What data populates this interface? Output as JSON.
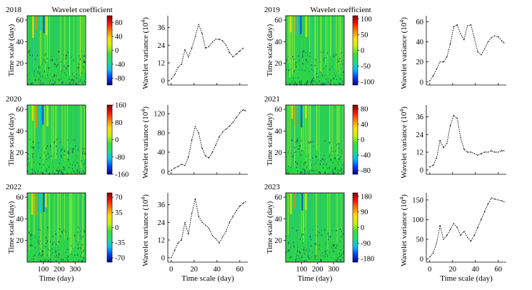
{
  "figure": {
    "colorbar_title": "Wavelet coefficient",
    "colormap": [
      "#00008f",
      "#0040ff",
      "#00c0ff",
      "#20e070",
      "#3cdd3c",
      "#c8f000",
      "#ffe000",
      "#ff8000",
      "#ff1000",
      "#800000"
    ],
    "scalogram_base_color": "#2ed44a",
    "scalogram_axes": {
      "xlabel": "Time (day)",
      "ylabel": "Time scale (day)",
      "xticks": [
        100,
        200,
        300
      ],
      "yticks": [
        20,
        40,
        60
      ],
      "xlim": [
        0,
        366
      ],
      "ylim": [
        0,
        64
      ]
    },
    "variance_axes": {
      "xlabel": "Time scale (day)",
      "ylabel": "Wavelet variance (10",
      "ylabel_exp": "4",
      "ylabel_close": ")",
      "xticks": [
        0,
        20,
        40,
        60
      ],
      "xlim": [
        -3,
        67
      ]
    }
  },
  "chart_data": [
    {
      "type": "heatmap",
      "title": "2018",
      "xlabel": "Time (day)",
      "ylabel": "Time scale (day)",
      "colorbar_ticks": [
        "80",
        "40",
        "0",
        "-40",
        "-80"
      ],
      "colorbar_range": [
        -100,
        100
      ]
    },
    {
      "type": "line",
      "xlabel": "Time scale (day)",
      "ylabel": "Wavelet variance (10^4)",
      "yticks": [
        "0",
        "12",
        "24",
        "36"
      ],
      "ylim": [
        -3,
        44
      ],
      "x": [
        0,
        3,
        6,
        9,
        12,
        15,
        18,
        21,
        24,
        27,
        30,
        33,
        36,
        39,
        42,
        45,
        48,
        51,
        54,
        57,
        60,
        63
      ],
      "y": [
        1,
        4,
        9,
        11,
        21,
        16,
        22,
        30,
        38,
        32,
        22,
        23,
        26,
        28,
        28,
        27,
        24,
        19,
        16,
        18,
        20,
        22
      ]
    },
    {
      "type": "heatmap",
      "title": "2019",
      "xlabel": "Time (day)",
      "ylabel": "Time scale (day)",
      "colorbar_ticks": [
        "100",
        "50",
        "0",
        "-50",
        "-100"
      ],
      "colorbar_range": [
        -110,
        110
      ]
    },
    {
      "type": "line",
      "xlabel": "Time scale (day)",
      "ylabel": "Wavelet variance (10^4)",
      "yticks": [
        "0",
        "20",
        "40",
        "60"
      ],
      "ylim": [
        -3,
        66
      ],
      "x": [
        0,
        3,
        6,
        9,
        12,
        15,
        18,
        21,
        24,
        27,
        30,
        33,
        36,
        39,
        42,
        45,
        48,
        51,
        54,
        57,
        60,
        63,
        65
      ],
      "y": [
        1,
        6,
        13,
        20,
        20,
        25,
        38,
        55,
        57,
        48,
        42,
        56,
        57,
        44,
        30,
        27,
        33,
        40,
        44,
        46,
        45,
        41,
        39
      ]
    },
    {
      "type": "heatmap",
      "title": "2020",
      "xlabel": "Time (day)",
      "ylabel": "Time scale (day)",
      "colorbar_ticks": [
        "160",
        "80",
        "0",
        "-80",
        "-160"
      ],
      "colorbar_range": [
        -160,
        160
      ]
    },
    {
      "type": "line",
      "xlabel": "Time scale (day)",
      "ylabel": "Wavelet variance (10^4)",
      "yticks": [
        "0",
        "40",
        "80",
        "120"
      ],
      "ylim": [
        -6,
        138
      ],
      "x": [
        0,
        3,
        6,
        9,
        12,
        15,
        18,
        21,
        24,
        27,
        30,
        33,
        36,
        39,
        42,
        45,
        48,
        51,
        54,
        57,
        60,
        63,
        65
      ],
      "y": [
        2,
        7,
        10,
        15,
        12,
        30,
        65,
        93,
        80,
        48,
        32,
        28,
        40,
        55,
        72,
        82,
        88,
        94,
        102,
        112,
        122,
        128,
        126
      ]
    },
    {
      "type": "heatmap",
      "title": "2021",
      "xlabel": "Time (day)",
      "ylabel": "Time scale (day)",
      "colorbar_ticks": [
        "80",
        "40",
        "0",
        "-40",
        "-80"
      ],
      "colorbar_range": [
        -90,
        90
      ]
    },
    {
      "type": "line",
      "xlabel": "Time scale (day)",
      "ylabel": "Wavelet variance (10^4)",
      "yticks": [
        "0",
        "12",
        "24",
        "36"
      ],
      "ylim": [
        -3,
        44
      ],
      "x": [
        0,
        3,
        6,
        9,
        12,
        15,
        18,
        21,
        24,
        27,
        30,
        33,
        36,
        39,
        42,
        45,
        48,
        51,
        54,
        57,
        60,
        63,
        65
      ],
      "y": [
        2,
        3,
        8,
        20,
        15,
        18,
        30,
        37,
        35,
        22,
        14,
        12,
        12,
        11,
        10,
        11,
        12,
        12,
        13,
        12,
        12,
        13,
        13
      ]
    },
    {
      "type": "heatmap",
      "title": "2022",
      "xlabel": "Time (day)",
      "ylabel": "Time scale (day)",
      "colorbar_ticks": [
        "70",
        "35",
        "0",
        "-35",
        "-70"
      ],
      "colorbar_range": [
        -80,
        80
      ]
    },
    {
      "type": "line",
      "xlabel": "Time scale (day)",
      "ylabel": "Wavelet variance (10^4)",
      "yticks": [
        "0",
        "12",
        "24",
        "36"
      ],
      "ylim": [
        -3,
        44
      ],
      "x": [
        0,
        3,
        6,
        9,
        12,
        15,
        18,
        21,
        24,
        27,
        30,
        33,
        36,
        39,
        42,
        45,
        48,
        51,
        54,
        57,
        60,
        63,
        65
      ],
      "y": [
        0,
        5,
        10,
        12,
        24,
        16,
        30,
        40,
        28,
        24,
        22,
        20,
        15,
        13,
        10,
        14,
        18,
        24,
        28,
        32,
        35,
        37,
        38
      ]
    },
    {
      "type": "heatmap",
      "title": "2023",
      "xlabel": "Time (day)",
      "ylabel": "Time scale (day)",
      "colorbar_ticks": [
        "180",
        "90",
        "0",
        "-90",
        "-180"
      ],
      "colorbar_range": [
        -200,
        200
      ]
    },
    {
      "type": "line",
      "xlabel": "Time scale (day)",
      "ylabel": "Wavelet variance (10^4)",
      "yticks": [
        "0",
        "50",
        "100",
        "150"
      ],
      "ylim": [
        -8,
        168
      ],
      "x": [
        0,
        3,
        6,
        9,
        12,
        15,
        18,
        21,
        24,
        27,
        30,
        33,
        36,
        39,
        42,
        45,
        48,
        51,
        54,
        57,
        60,
        63,
        65
      ],
      "y": [
        5,
        15,
        40,
        85,
        50,
        60,
        75,
        90,
        80,
        60,
        70,
        55,
        45,
        60,
        80,
        100,
        120,
        140,
        155,
        152,
        150,
        148,
        145
      ]
    }
  ]
}
